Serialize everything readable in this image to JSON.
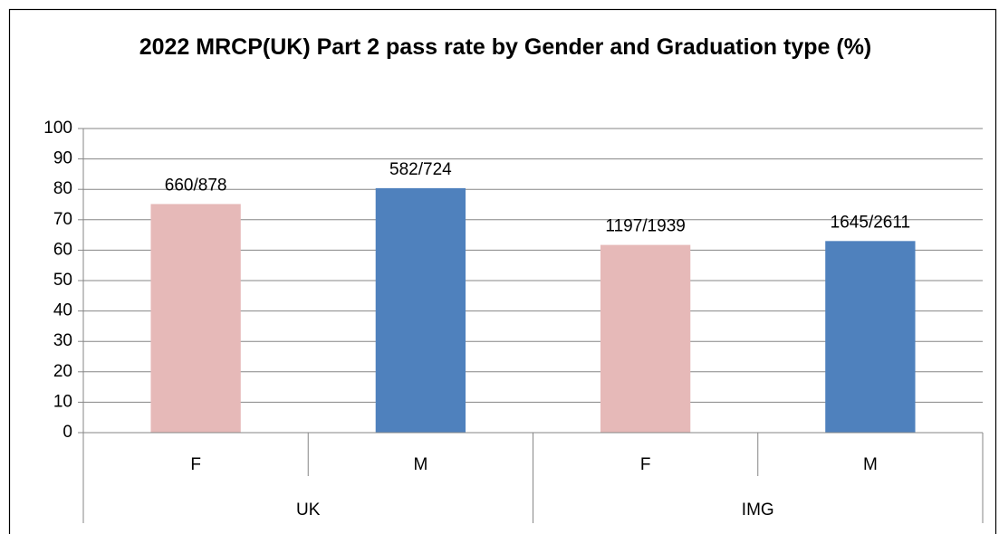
{
  "chart_data": {
    "type": "bar",
    "title": "2022 MRCP(UK) Part 2 pass rate by Gender and Graduation type (%)",
    "categories": [
      "F",
      "M",
      "F",
      "M"
    ],
    "groups": [
      {
        "name": "UK",
        "size": 2
      },
      {
        "name": "IMG",
        "size": 2
      }
    ],
    "values": [
      75.17,
      80.39,
      61.73,
      63.0
    ],
    "value_labels": [
      "660/878",
      "582/724",
      "1197/1939",
      "1645/2611"
    ],
    "colors": [
      "#e6b9b8",
      "#4f81bd",
      "#e6b9b8",
      "#4f81bd"
    ],
    "ylim": [
      0,
      100
    ],
    "yticks": [
      0,
      10,
      20,
      30,
      40,
      50,
      60,
      70,
      80,
      90,
      100
    ],
    "grid": true
  }
}
